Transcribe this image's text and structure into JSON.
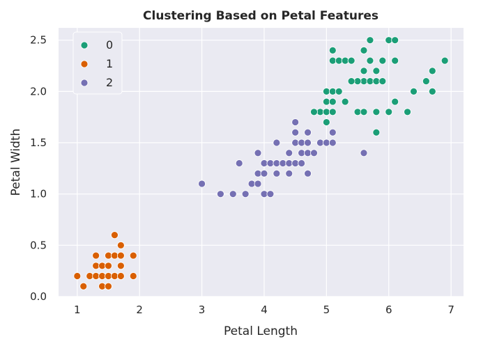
{
  "chart_data": {
    "type": "scatter",
    "title": "Clustering Based on Petal Features",
    "xlabel": "Petal Length",
    "ylabel": "Petal Width",
    "xlim": [
      0.7,
      7.2
    ],
    "ylim": [
      0.0,
      2.62
    ],
    "x_ticks": [
      1,
      2,
      3,
      4,
      5,
      6,
      7
    ],
    "x_tick_labels": [
      "1",
      "2",
      "3",
      "4",
      "5",
      "6",
      "7"
    ],
    "y_ticks": [
      0.0,
      0.5,
      1.0,
      1.5,
      2.0,
      2.5
    ],
    "y_tick_labels": [
      "0.0",
      "0.5",
      "1.0",
      "1.5",
      "2.0",
      "2.5"
    ],
    "grid": true,
    "legend_position": "top-left",
    "background": "#eaeaf2",
    "series": [
      {
        "name": "0",
        "color": "#1b9e77",
        "points": [
          [
            5.1,
            2.4
          ],
          [
            5.1,
            2.3
          ],
          [
            5.2,
            2.3
          ],
          [
            5.3,
            2.3
          ],
          [
            5.4,
            2.3
          ],
          [
            5.6,
            2.4
          ],
          [
            5.7,
            2.5
          ],
          [
            6.0,
            2.5
          ],
          [
            6.1,
            2.5
          ],
          [
            6.1,
            2.3
          ],
          [
            5.0,
            2.0
          ],
          [
            5.1,
            2.0
          ],
          [
            5.2,
            2.0
          ],
          [
            5.0,
            1.9
          ],
          [
            5.1,
            1.9
          ],
          [
            5.3,
            1.9
          ],
          [
            4.9,
            1.8
          ],
          [
            5.0,
            1.8
          ],
          [
            5.1,
            1.8
          ],
          [
            5.5,
            1.8
          ],
          [
            5.6,
            1.8
          ],
          [
            5.8,
            1.8
          ],
          [
            6.0,
            1.8
          ],
          [
            6.3,
            1.8
          ],
          [
            5.6,
            2.2
          ],
          [
            5.6,
            2.1
          ],
          [
            5.7,
            2.3
          ],
          [
            5.8,
            2.2
          ],
          [
            5.9,
            2.3
          ],
          [
            5.7,
            2.1
          ],
          [
            5.5,
            2.1
          ],
          [
            5.4,
            2.1
          ],
          [
            5.8,
            2.1
          ],
          [
            5.9,
            2.1
          ],
          [
            5.8,
            1.6
          ],
          [
            5.0,
            1.7
          ],
          [
            6.1,
            1.9
          ],
          [
            6.4,
            2.0
          ],
          [
            6.6,
            2.1
          ],
          [
            6.7,
            2.2
          ],
          [
            6.7,
            2.0
          ],
          [
            6.9,
            2.3
          ],
          [
            4.8,
            1.8
          ]
        ]
      },
      {
        "name": "1",
        "color": "#d95f02",
        "points": [
          [
            1.0,
            0.2
          ],
          [
            1.1,
            0.1
          ],
          [
            1.2,
            0.2
          ],
          [
            1.3,
            0.2
          ],
          [
            1.3,
            0.3
          ],
          [
            1.3,
            0.4
          ],
          [
            1.4,
            0.1
          ],
          [
            1.4,
            0.2
          ],
          [
            1.4,
            0.3
          ],
          [
            1.5,
            0.1
          ],
          [
            1.5,
            0.2
          ],
          [
            1.5,
            0.3
          ],
          [
            1.5,
            0.4
          ],
          [
            1.6,
            0.2
          ],
          [
            1.6,
            0.4
          ],
          [
            1.6,
            0.6
          ],
          [
            1.7,
            0.2
          ],
          [
            1.7,
            0.3
          ],
          [
            1.7,
            0.4
          ],
          [
            1.7,
            0.5
          ],
          [
            1.9,
            0.2
          ],
          [
            1.9,
            0.4
          ]
        ]
      },
      {
        "name": "2",
        "color": "#7570b3",
        "points": [
          [
            3.0,
            1.1
          ],
          [
            3.3,
            1.0
          ],
          [
            3.5,
            1.0
          ],
          [
            3.6,
            1.3
          ],
          [
            3.7,
            1.0
          ],
          [
            3.8,
            1.1
          ],
          [
            3.9,
            1.1
          ],
          [
            3.9,
            1.2
          ],
          [
            3.9,
            1.4
          ],
          [
            4.0,
            1.0
          ],
          [
            4.0,
            1.2
          ],
          [
            4.0,
            1.3
          ],
          [
            4.1,
            1.0
          ],
          [
            4.1,
            1.3
          ],
          [
            4.2,
            1.2
          ],
          [
            4.2,
            1.3
          ],
          [
            4.2,
            1.5
          ],
          [
            4.3,
            1.3
          ],
          [
            4.4,
            1.2
          ],
          [
            4.4,
            1.3
          ],
          [
            4.4,
            1.4
          ],
          [
            4.5,
            1.3
          ],
          [
            4.5,
            1.5
          ],
          [
            4.5,
            1.6
          ],
          [
            4.5,
            1.7
          ],
          [
            4.6,
            1.3
          ],
          [
            4.6,
            1.4
          ],
          [
            4.6,
            1.5
          ],
          [
            4.7,
            1.2
          ],
          [
            4.7,
            1.4
          ],
          [
            4.7,
            1.5
          ],
          [
            4.7,
            1.6
          ],
          [
            4.8,
            1.4
          ],
          [
            4.9,
            1.5
          ],
          [
            5.0,
            1.5
          ],
          [
            5.1,
            1.5
          ],
          [
            5.1,
            1.6
          ],
          [
            5.6,
            1.4
          ]
        ]
      }
    ]
  }
}
